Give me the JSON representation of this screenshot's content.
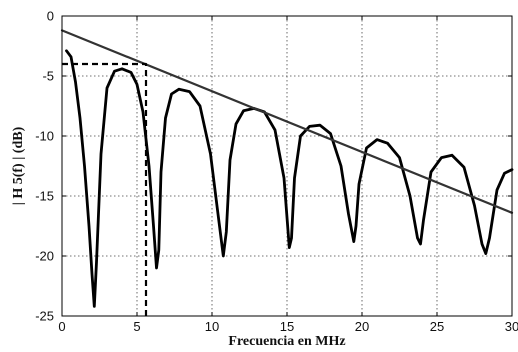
{
  "chart_data": {
    "type": "line",
    "xlabel": "Frecuencia en MHz",
    "ylabel": "| H 5(f) |  (dB)",
    "xlim": [
      0,
      30
    ],
    "ylim": [
      -25,
      0
    ],
    "xticks": [
      0,
      5,
      10,
      15,
      20,
      25,
      30
    ],
    "yticks": [
      0,
      -5,
      -10,
      -15,
      -20,
      -25
    ],
    "grid": true,
    "legend": "none",
    "series": [
      {
        "line_style": "solid-thick",
        "color": "#000000",
        "x": [
          0.3,
          0.6,
          0.9,
          1.2,
          1.5,
          1.8,
          2.0,
          2.15,
          2.3,
          2.6,
          3.0,
          3.5,
          4.0,
          4.6,
          5.0,
          5.4,
          5.8,
          6.1,
          6.3,
          6.45,
          6.6,
          6.9,
          7.3,
          7.8,
          8.5,
          9.2,
          9.9,
          10.4,
          10.75,
          10.95,
          11.2,
          11.6,
          12.1,
          12.8,
          13.5,
          14.2,
          14.8,
          15.15,
          15.3,
          15.5,
          15.9,
          16.5,
          17.2,
          17.9,
          18.6,
          19.1,
          19.45,
          19.6,
          19.8,
          20.3,
          21.0,
          21.7,
          22.5,
          23.2,
          23.7,
          23.9,
          24.1,
          24.6,
          25.3,
          26.0,
          26.8,
          27.5,
          28.0,
          28.25,
          28.5,
          29.0,
          29.5,
          30.0
        ],
        "y": [
          -2.9,
          -3.4,
          -5.5,
          -8.5,
          -12.5,
          -17.5,
          -21.5,
          -24.2,
          -20.5,
          -11.5,
          -6.0,
          -4.6,
          -4.4,
          -4.7,
          -5.7,
          -8.0,
          -12.5,
          -17.5,
          -21.0,
          -19.5,
          -13.0,
          -8.5,
          -6.5,
          -6.1,
          -6.3,
          -7.5,
          -11.5,
          -16.5,
          -20.0,
          -18.0,
          -12.0,
          -9.0,
          -7.9,
          -7.7,
          -8.0,
          -9.5,
          -13.5,
          -19.3,
          -18.5,
          -13.5,
          -10.0,
          -9.2,
          -9.1,
          -9.8,
          -12.5,
          -16.5,
          -18.8,
          -17.5,
          -14.0,
          -11.0,
          -10.3,
          -10.6,
          -11.8,
          -15.0,
          -18.5,
          -19.0,
          -17.0,
          -13.0,
          -11.8,
          -11.6,
          -12.6,
          -15.8,
          -19.0,
          -19.8,
          -18.5,
          -14.5,
          -13.1,
          -12.8
        ]
      },
      {
        "line_style": "solid",
        "color": "#333333",
        "x": [
          0,
          30
        ],
        "y": [
          -1.2,
          -16.4
        ]
      },
      {
        "line_style": "dashed",
        "color": "#000000",
        "x": [
          0.0,
          5.6,
          5.6
        ],
        "y": [
          -4.0,
          -4.0,
          -25.0
        ]
      }
    ]
  }
}
